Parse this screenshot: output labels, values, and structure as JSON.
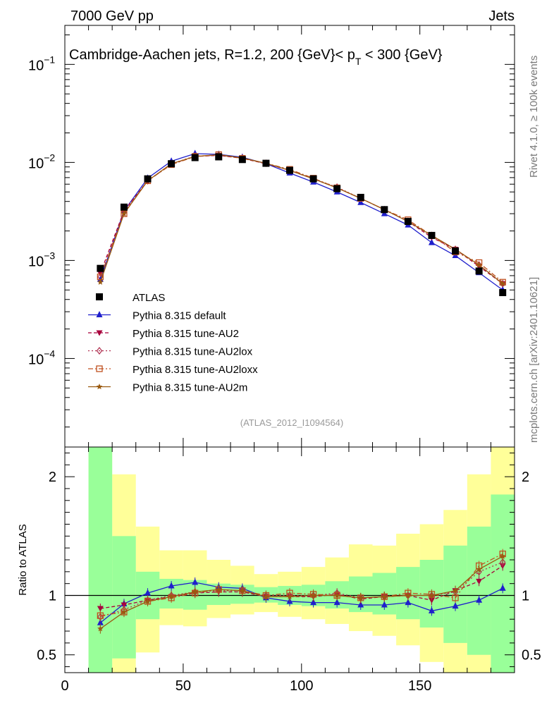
{
  "header": {
    "left": "7000 GeV pp",
    "right": "Jets",
    "side_top": "Rivet 4.1.0, ≥ 100k events",
    "side_bottom": "mcplots.cern.ch [arXiv:2401.10621]"
  },
  "chart_data": [
    {
      "type": "line",
      "panel": "main",
      "title_main": "Cambridge-Aachen jets, R=1.2,  200 {GeV}< p",
      "title_sub": "T",
      "title_tail": " < 300 {GeV}",
      "watermark": "(ATLAS_2012_I1094564)",
      "yscale": "log",
      "ylim": [
        1.25e-05,
        0.25
      ],
      "xlim": [
        0,
        190
      ],
      "y_tick_labels": [
        {
          "base": "10",
          "exp": "−1",
          "value": 0.1
        },
        {
          "base": "10",
          "exp": "−2",
          "value": 0.01
        },
        {
          "base": "10",
          "exp": "−3",
          "value": 0.001
        },
        {
          "base": "10",
          "exp": "−4",
          "value": 0.0001
        }
      ],
      "legend_position": "lower-left",
      "x": [
        15,
        25,
        35,
        45,
        55,
        65,
        75,
        85,
        95,
        105,
        115,
        125,
        135,
        145,
        155,
        165,
        175,
        185
      ],
      "series": [
        {
          "name": "ATLAS",
          "color": "#000000",
          "marker": "square",
          "values": [
            0.00083,
            0.0035,
            0.0068,
            0.0097,
            0.0112,
            0.0114,
            0.0107,
            0.0098,
            0.0083,
            0.0068,
            0.0054,
            0.0044,
            0.0033,
            0.0025,
            0.0018,
            0.00125,
            0.00078,
            0.00047
          ]
        },
        {
          "name": "Pythia 8.315 default",
          "color": "#1f1fcc",
          "marker": "triangle-up",
          "dash": "",
          "values": [
            0.00064,
            0.0032,
            0.0069,
            0.0103,
            0.0123,
            0.0121,
            0.0113,
            0.0097,
            0.0078,
            0.0063,
            0.005,
            0.0039,
            0.003,
            0.0023,
            0.00152,
            0.00112,
            0.00075,
            0.0005
          ]
        },
        {
          "name": "Pythia 8.315 tune-AU2",
          "color": "#a8003c",
          "marker": "triangle-down",
          "dash": "5,3",
          "values": [
            0.00074,
            0.0032,
            0.0065,
            0.0096,
            0.0115,
            0.0118,
            0.011,
            0.0097,
            0.0083,
            0.0068,
            0.0055,
            0.0043,
            0.0033,
            0.0025,
            0.00172,
            0.0013,
            0.00087,
            0.00058
          ]
        },
        {
          "name": "Pythia 8.315 tune-AU2lox",
          "color": "#b03050",
          "marker": "diamond-open",
          "dash": "2,3",
          "values": [
            0.00068,
            0.0031,
            0.0065,
            0.0097,
            0.0116,
            0.0118,
            0.0111,
            0.0098,
            0.0083,
            0.0068,
            0.0056,
            0.0043,
            0.0033,
            0.0025,
            0.0018,
            0.0013,
            0.0009,
            0.00058
          ]
        },
        {
          "name": "Pythia 8.315 tune-AU2loxx",
          "color": "#c05020",
          "marker": "square-open",
          "dash": "7,3,2,3",
          "values": [
            0.00068,
            0.003,
            0.0065,
            0.0095,
            0.0115,
            0.012,
            0.011,
            0.0098,
            0.0085,
            0.0069,
            0.0055,
            0.0043,
            0.0033,
            0.0026,
            0.0018,
            0.00122,
            0.00095,
            0.0006
          ]
        },
        {
          "name": "Pythia 8.315 tune-AU2m",
          "color": "#9a5a10",
          "marker": "star",
          "dash": "",
          "values": [
            0.0006,
            0.003,
            0.0065,
            0.0097,
            0.0115,
            0.012,
            0.0111,
            0.0098,
            0.0083,
            0.0068,
            0.0055,
            0.0043,
            0.0033,
            0.0025,
            0.0018,
            0.0013,
            0.0009,
            0.00058
          ]
        }
      ]
    },
    {
      "type": "line",
      "panel": "ratio",
      "ylabel": "Ratio to ATLAS",
      "ylim": [
        0.35,
        2.25
      ],
      "xlim": [
        0,
        190
      ],
      "x_ticks": [
        0,
        50,
        100,
        150
      ],
      "y_tick_labels": [
        {
          "label": "2",
          "value": 2
        },
        {
          "label": "1",
          "value": 1
        },
        {
          "label": "0.5",
          "value": 0.5
        }
      ],
      "x": [
        15,
        25,
        35,
        45,
        55,
        65,
        75,
        85,
        95,
        105,
        115,
        125,
        135,
        145,
        155,
        165,
        175,
        185
      ],
      "bands": {
        "bins": [
          [
            10,
            20
          ],
          [
            20,
            30
          ],
          [
            30,
            40
          ],
          [
            40,
            50
          ],
          [
            50,
            60
          ],
          [
            60,
            70
          ],
          [
            70,
            80
          ],
          [
            80,
            90
          ],
          [
            90,
            100
          ],
          [
            100,
            110
          ],
          [
            110,
            120
          ],
          [
            120,
            130
          ],
          [
            130,
            140
          ],
          [
            140,
            150
          ],
          [
            150,
            160
          ],
          [
            160,
            170
          ],
          [
            170,
            180
          ],
          [
            180,
            190
          ]
        ],
        "outer_color": "#ffff99",
        "inner_color": "#99ff99",
        "outer_low": [
          0.35,
          0.35,
          0.52,
          0.75,
          0.74,
          0.81,
          0.84,
          0.86,
          0.82,
          0.8,
          0.76,
          0.7,
          0.66,
          0.58,
          0.44,
          0.35,
          0.35,
          0.35
        ],
        "outer_high": [
          2.25,
          2.02,
          1.58,
          1.38,
          1.38,
          1.3,
          1.25,
          1.18,
          1.2,
          1.24,
          1.32,
          1.43,
          1.42,
          1.52,
          1.6,
          1.72,
          2.02,
          2.25
        ],
        "inner_low": [
          0.35,
          0.47,
          0.8,
          0.89,
          0.88,
          0.92,
          0.93,
          0.94,
          0.92,
          0.91,
          0.89,
          0.86,
          0.84,
          0.8,
          0.73,
          0.6,
          0.5,
          0.35
        ],
        "inner_high": [
          2.25,
          1.5,
          1.2,
          1.14,
          1.13,
          1.1,
          1.09,
          1.07,
          1.08,
          1.09,
          1.12,
          1.16,
          1.19,
          1.24,
          1.3,
          1.42,
          1.58,
          1.85
        ]
      },
      "series": [
        {
          "name": "Pythia 8.315 default",
          "color": "#1f1fcc",
          "marker": "triangle-up",
          "dash": "",
          "values": [
            0.77,
            0.93,
            1.02,
            1.08,
            1.11,
            1.07,
            1.06,
            0.98,
            0.95,
            0.94,
            0.94,
            0.92,
            0.92,
            0.94,
            0.87,
            0.91,
            0.96,
            1.06
          ]
        },
        {
          "name": "Pythia 8.315 tune-AU2",
          "color": "#a8003c",
          "marker": "triangle-down",
          "dash": "5,3",
          "values": [
            0.89,
            0.92,
            0.96,
            0.99,
            1.02,
            1.03,
            1.03,
            0.99,
            0.99,
            0.99,
            1.01,
            0.97,
            0.99,
            1.0,
            0.96,
            1.04,
            1.12,
            1.25
          ]
        },
        {
          "name": "Pythia 8.315 tune-AU2lox",
          "color": "#b03050",
          "marker": "diamond-open",
          "dash": "2,3",
          "values": [
            0.82,
            0.88,
            0.96,
            1.0,
            1.03,
            1.04,
            1.04,
            1.0,
            1.0,
            1.0,
            1.02,
            0.98,
            0.99,
            1.0,
            1.0,
            1.03,
            1.2,
            1.28
          ]
        },
        {
          "name": "Pythia 8.315 tune-AU2loxx",
          "color": "#c05020",
          "marker": "square-open",
          "dash": "7,3,2,3",
          "values": [
            0.83,
            0.86,
            0.95,
            0.98,
            1.02,
            1.05,
            1.04,
            1.0,
            1.02,
            1.01,
            1.0,
            0.98,
            0.99,
            1.02,
            1.01,
            0.98,
            1.25,
            1.35
          ]
        },
        {
          "name": "Pythia 8.315 tune-AU2m",
          "color": "#9a5a10",
          "marker": "star",
          "dash": "",
          "values": [
            0.72,
            0.86,
            0.95,
            0.99,
            1.03,
            1.05,
            1.04,
            0.99,
            0.99,
            1.0,
            1.0,
            0.98,
            0.99,
            1.0,
            1.0,
            1.04,
            1.22,
            1.33
          ]
        }
      ]
    }
  ]
}
